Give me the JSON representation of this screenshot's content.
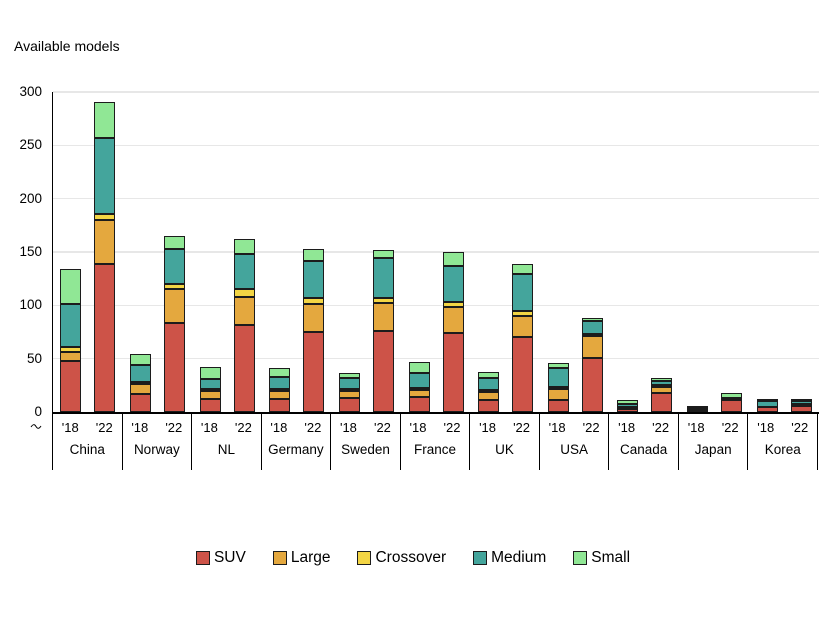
{
  "header": {
    "title": "Available models"
  },
  "chart_data": {
    "type": "bar",
    "stacked": true,
    "title": "Available models",
    "xlabel": "",
    "ylabel": "Available models",
    "ylim": [
      0,
      300
    ],
    "yticks": [
      0,
      50,
      100,
      150,
      200,
      250,
      300
    ],
    "grid": "horizontal",
    "legend_position": "bottom",
    "bar_outline_color": "#1c1c1c",
    "gridline_color": "#e7e7e7",
    "axis_color": "#000000",
    "year_labels": [
      "'18",
      "'22"
    ],
    "categories": [
      {
        "name": "SUV",
        "color": "#cd5348"
      },
      {
        "name": "Large",
        "color": "#e4a83e"
      },
      {
        "name": "Crossover",
        "color": "#f3d544"
      },
      {
        "name": "Medium",
        "color": "#44a59c"
      },
      {
        "name": "Small",
        "color": "#90e795"
      }
    ],
    "groups": [
      {
        "country": "China",
        "values_by_year": [
          [
            48,
            8,
            5,
            40,
            33
          ],
          [
            139,
            41,
            6,
            71,
            34
          ]
        ]
      },
      {
        "country": "Norway",
        "values_by_year": [
          [
            17,
            9,
            1,
            16,
            11
          ],
          [
            83,
            32,
            5,
            33,
            12
          ]
        ]
      },
      {
        "country": "NL",
        "values_by_year": [
          [
            12,
            8,
            2,
            9,
            11
          ],
          [
            82,
            26,
            7,
            33,
            14
          ]
        ]
      },
      {
        "country": "Germany",
        "values_by_year": [
          [
            12,
            8,
            2,
            11,
            8
          ],
          [
            75,
            26,
            6,
            35,
            11
          ]
        ]
      },
      {
        "country": "Sweden",
        "values_by_year": [
          [
            13,
            7,
            2,
            10,
            5
          ],
          [
            76,
            26,
            5,
            37,
            8
          ]
        ]
      },
      {
        "country": "France",
        "values_by_year": [
          [
            14,
            7,
            2,
            14,
            10
          ],
          [
            74,
            24,
            5,
            34,
            13
          ]
        ]
      },
      {
        "country": "UK",
        "values_by_year": [
          [
            11,
            8,
            2,
            11,
            6
          ],
          [
            70,
            20,
            5,
            34,
            10
          ]
        ]
      },
      {
        "country": "USA",
        "values_by_year": [
          [
            11,
            11,
            1,
            17,
            5
          ],
          [
            51,
            20,
            1,
            12,
            3
          ]
        ]
      },
      {
        "country": "Canada",
        "values_by_year": [
          [
            3,
            1,
            0,
            3,
            3
          ],
          [
            18,
            5,
            2,
            4,
            3
          ]
        ]
      },
      {
        "country": "Japan",
        "values_by_year": [
          [
            1,
            0,
            0,
            2,
            1
          ],
          [
            11,
            0,
            0,
            2,
            5
          ]
        ]
      },
      {
        "country": "Korea",
        "values_by_year": [
          [
            5,
            0,
            0,
            5,
            2
          ],
          [
            6,
            1,
            0,
            2,
            1
          ]
        ]
      }
    ]
  }
}
